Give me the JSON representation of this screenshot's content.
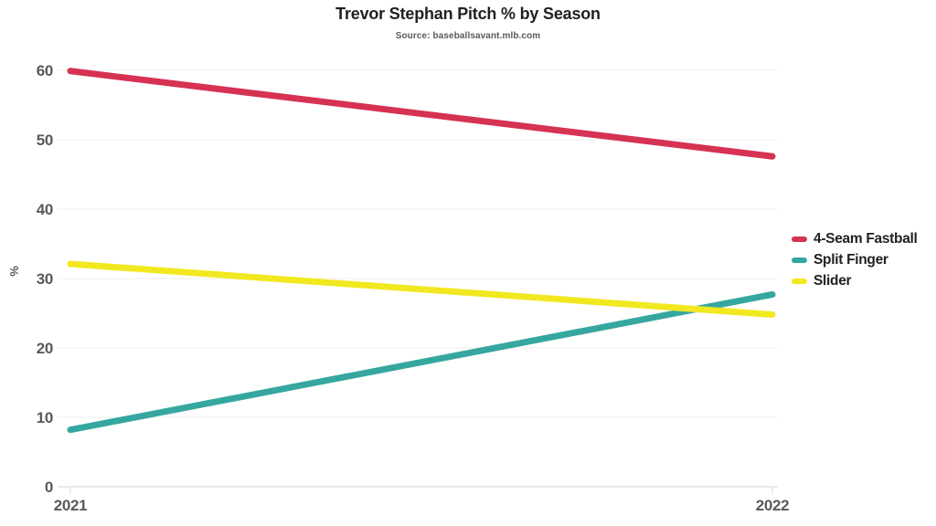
{
  "chart_data": {
    "type": "line",
    "title": "Trevor Stephan Pitch % by Season",
    "source": "Source: baseballsavant.mlb.com",
    "categories": [
      "2021",
      "2022"
    ],
    "series": [
      {
        "name": "4-Seam Fastball",
        "color": "#d63253",
        "values": [
          59.9,
          47.6
        ]
      },
      {
        "name": "Split Finger",
        "color": "#35a79f",
        "values": [
          8.2,
          27.7
        ]
      },
      {
        "name": "Slider",
        "color": "#f2e820",
        "values": [
          32.1,
          24.8
        ]
      }
    ],
    "xlabel": "",
    "ylabel": "%",
    "ylim": [
      0,
      60
    ],
    "yticks": [
      0,
      10,
      20,
      30,
      40,
      50,
      60
    ],
    "grid": true,
    "legend_position": "right",
    "title_color": "#231f20",
    "axis_text_color": "#58595b",
    "gridline_color": "#f1f1f1",
    "axisline_color": "#e2e2e2",
    "background_color": "#ffffff"
  }
}
